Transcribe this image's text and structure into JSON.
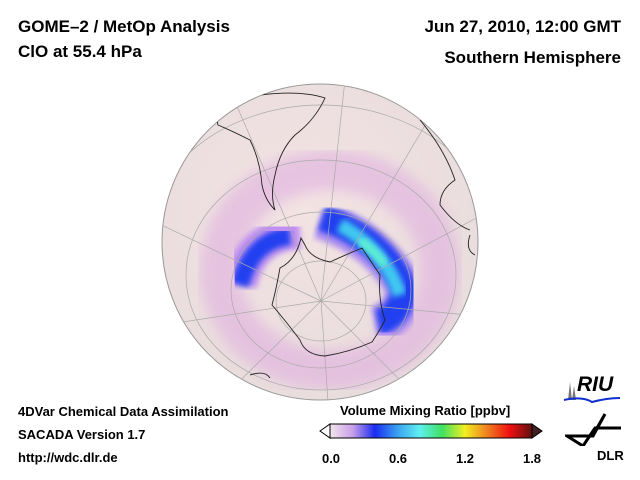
{
  "header": {
    "title_line1": "GOME–2 / MetOp Analysis",
    "title_line2": "ClO at 55.4 hPa",
    "date": "Jun 27, 2010, 12:00 GMT",
    "region": "Southern Hemisphere"
  },
  "footer": {
    "line1": "4DVar Chemical Data Assimilation",
    "line2": "SACADA Version 1.7",
    "line3": "http://wdc.dlr.de"
  },
  "colorbar": {
    "title": "Volume Mixing Ratio [ppbv]",
    "ticks": [
      "0.0",
      "0.6",
      "1.2",
      "1.8"
    ],
    "range": [
      0.0,
      1.8
    ],
    "colors": [
      "#f3e6ea",
      "#c9a0e8",
      "#1a2cf0",
      "#3aa0f0",
      "#5ef0f0",
      "#40e060",
      "#f0f020",
      "#f08020",
      "#f01010",
      "#601010"
    ]
  },
  "logos": {
    "riu": "RIU",
    "dlr": "DLR"
  }
}
